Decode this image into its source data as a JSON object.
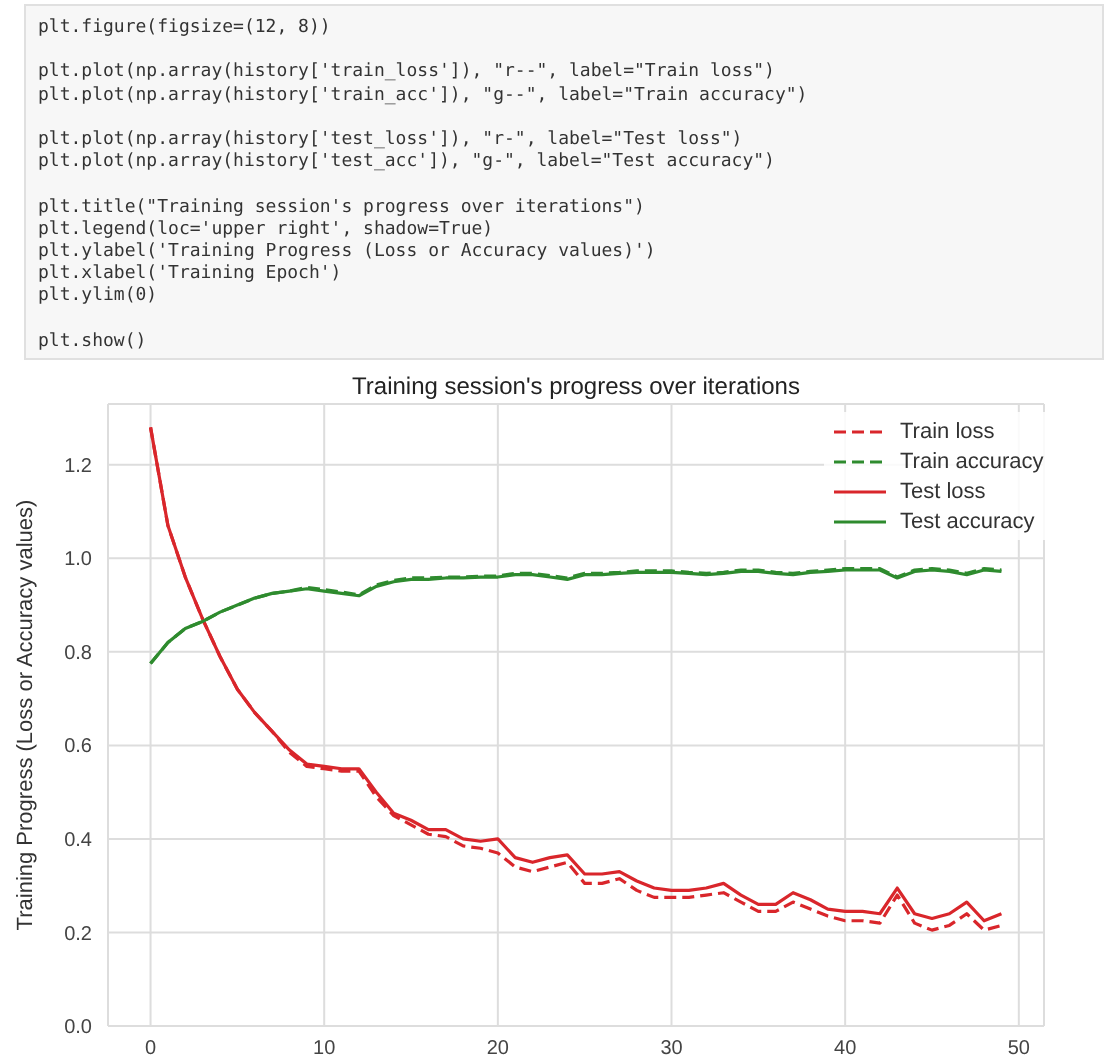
{
  "chart_data": {
    "type": "line",
    "title": "Training session's progress over iterations",
    "ylabel": "Training Progress (Loss or Accuracy values)",
    "annotations": [
      "plt.figure(figsize=(12, 8))\n\nplt.plot(np.array(history['train_loss']), \"r--\", label=\"Train loss\")\nplt.plot(np.array(history['train_acc']), \"g--\", label=\"Train accuracy\")\n\nplt.plot(np.array(history['test_loss']), \"r-\", label=\"Test loss\")\nplt.plot(np.array(history['test_acc']), \"g-\", label=\"Test accuracy\")\n\nplt.title(\"Training session's progress over iterations\")\nplt.legend(loc='upper right', shadow=True)\nplt.ylabel('Training Progress (Loss or Accuracy values)')\nplt.xlabel('Training Epoch')\nplt.ylim(0)\n\nplt.show()"
    ],
    "x": [
      0,
      1,
      2,
      3,
      4,
      5,
      6,
      7,
      8,
      9,
      10,
      11,
      12,
      13,
      14,
      15,
      16,
      17,
      18,
      19,
      20,
      21,
      22,
      23,
      24,
      25,
      26,
      27,
      28,
      29,
      30,
      31,
      32,
      33,
      34,
      35,
      36,
      37,
      38,
      39,
      40,
      41,
      42,
      43,
      44,
      45,
      46,
      47,
      48,
      49
    ],
    "series": [
      {
        "name": "Train loss",
        "color": "#d9262b",
        "line_style": "dashed",
        "values": [
          1.28,
          1.07,
          0.96,
          0.87,
          0.79,
          0.72,
          0.67,
          0.63,
          0.585,
          0.555,
          0.55,
          0.545,
          0.545,
          0.49,
          0.45,
          0.43,
          0.41,
          0.405,
          0.385,
          0.38,
          0.37,
          0.34,
          0.33,
          0.34,
          0.35,
          0.305,
          0.305,
          0.315,
          0.29,
          0.275,
          0.275,
          0.275,
          0.28,
          0.285,
          0.265,
          0.245,
          0.245,
          0.265,
          0.25,
          0.235,
          0.225,
          0.225,
          0.22,
          0.28,
          0.22,
          0.205,
          0.215,
          0.24,
          0.205,
          0.215
        ]
      },
      {
        "name": "Train accuracy",
        "color": "#2e8b2e",
        "line_style": "dashed",
        "values": [
          0.775,
          0.82,
          0.85,
          0.865,
          0.885,
          0.9,
          0.915,
          0.925,
          0.93,
          0.938,
          0.933,
          0.928,
          0.922,
          0.943,
          0.953,
          0.958,
          0.958,
          0.96,
          0.96,
          0.962,
          0.962,
          0.968,
          0.968,
          0.963,
          0.958,
          0.968,
          0.968,
          0.97,
          0.973,
          0.973,
          0.973,
          0.97,
          0.968,
          0.97,
          0.975,
          0.975,
          0.97,
          0.968,
          0.972,
          0.975,
          0.978,
          0.978,
          0.978,
          0.96,
          0.975,
          0.978,
          0.975,
          0.968,
          0.978,
          0.975
        ]
      },
      {
        "name": "Test loss",
        "color": "#d9262b",
        "line_style": "solid",
        "values": [
          1.28,
          1.07,
          0.96,
          0.87,
          0.79,
          0.72,
          0.67,
          0.63,
          0.59,
          0.56,
          0.555,
          0.55,
          0.55,
          0.5,
          0.455,
          0.44,
          0.42,
          0.42,
          0.4,
          0.395,
          0.4,
          0.36,
          0.35,
          0.36,
          0.366,
          0.325,
          0.325,
          0.33,
          0.31,
          0.295,
          0.29,
          0.29,
          0.295,
          0.305,
          0.28,
          0.26,
          0.26,
          0.285,
          0.27,
          0.25,
          0.245,
          0.245,
          0.24,
          0.295,
          0.24,
          0.23,
          0.24,
          0.265,
          0.225,
          0.24
        ]
      },
      {
        "name": "Test accuracy",
        "color": "#2e8b2e",
        "line_style": "solid",
        "values": [
          0.775,
          0.82,
          0.85,
          0.865,
          0.885,
          0.9,
          0.915,
          0.925,
          0.93,
          0.935,
          0.93,
          0.925,
          0.92,
          0.94,
          0.95,
          0.955,
          0.955,
          0.958,
          0.958,
          0.96,
          0.96,
          0.965,
          0.965,
          0.96,
          0.955,
          0.965,
          0.965,
          0.968,
          0.97,
          0.97,
          0.97,
          0.968,
          0.965,
          0.968,
          0.972,
          0.972,
          0.968,
          0.965,
          0.97,
          0.972,
          0.975,
          0.975,
          0.975,
          0.958,
          0.972,
          0.975,
          0.972,
          0.965,
          0.975,
          0.972
        ]
      }
    ],
    "xlim": [
      -2.45,
      51.45
    ],
    "xticks": [
      0,
      10,
      20,
      30,
      40,
      50
    ],
    "ylim": [
      0,
      1.33
    ],
    "yticks": [
      {
        "value": 0,
        "label": "0.0"
      },
      0.2,
      0.4,
      0.6,
      0.8,
      {
        "value": 1,
        "label": "1.0"
      },
      1.2
    ],
    "grid": true,
    "legend": "top right",
    "marker": "none"
  }
}
